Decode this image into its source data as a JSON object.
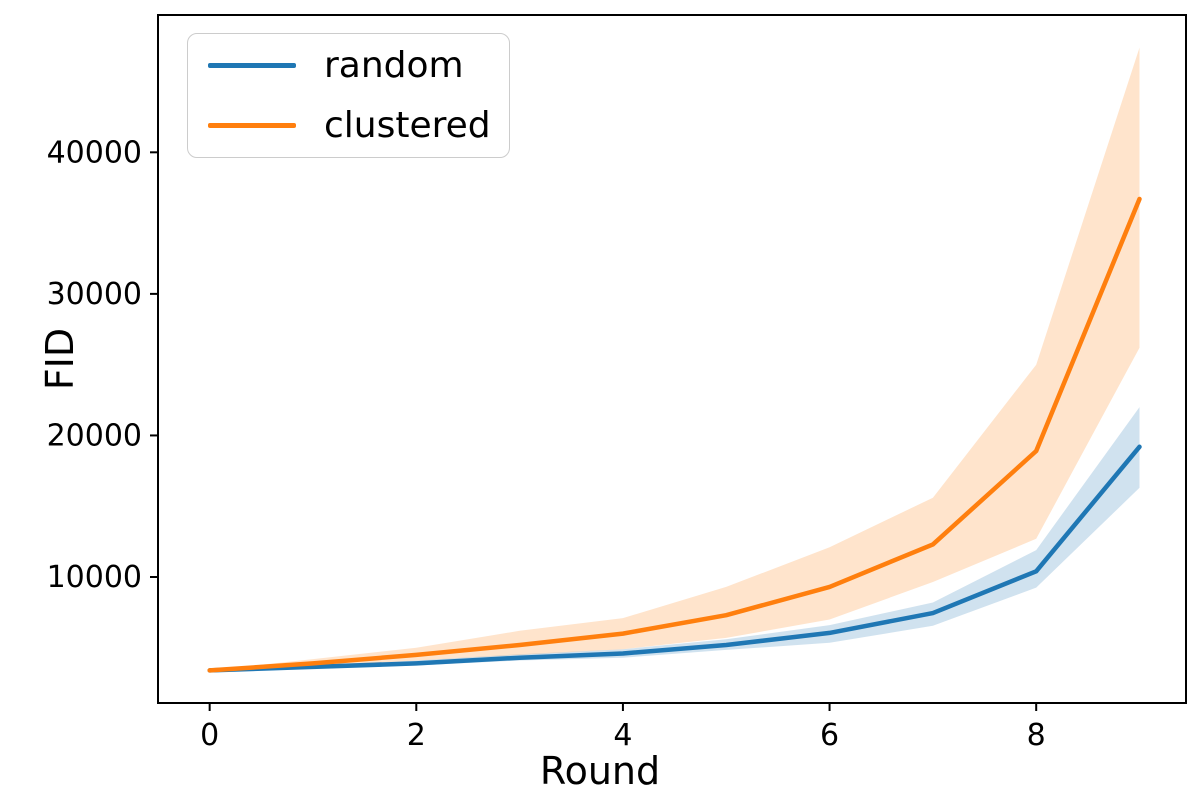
{
  "figure": {
    "background": "#ffffff",
    "accent_blue": "#1f77b4",
    "accent_orange": "#ff7f0e"
  },
  "legend": {
    "position": "upper left",
    "items": [
      {
        "label": "random",
        "color": "#1f77b4"
      },
      {
        "label": "clustered",
        "color": "#ff7f0e"
      }
    ]
  },
  "chart_data": {
    "type": "line",
    "title": "",
    "xlabel": "Round",
    "ylabel": "FID",
    "x": [
      0,
      1,
      2,
      3,
      4,
      5,
      6,
      7,
      8,
      9
    ],
    "x_ticks": [
      0,
      2,
      4,
      6,
      8
    ],
    "y_ticks": [
      10000,
      20000,
      30000,
      40000
    ],
    "xlim": [
      -0.5,
      9.45
    ],
    "ylim": [
      1100,
      49700
    ],
    "grid": false,
    "legend_position": "upper left",
    "band_opacity": 0.21,
    "series": [
      {
        "name": "random",
        "color": "#1f77b4",
        "values": [
          3400,
          3650,
          3900,
          4300,
          4600,
          5200,
          6050,
          7450,
          10400,
          19200
        ],
        "band_lower": [
          3400,
          3550,
          3750,
          4100,
          4300,
          4850,
          5350,
          6550,
          9250,
          16300
        ],
        "band_upper": [
          3400,
          3750,
          4100,
          4550,
          4900,
          5600,
          6600,
          8200,
          11900,
          22000
        ]
      },
      {
        "name": "clustered",
        "color": "#ff7f0e",
        "values": [
          3400,
          3900,
          4500,
          5200,
          6000,
          7300,
          9300,
          12300,
          18900,
          36700
        ],
        "band_lower": [
          3400,
          3700,
          4100,
          4500,
          4900,
          5700,
          7000,
          9650,
          12700,
          26200
        ],
        "band_upper": [
          3400,
          4200,
          5000,
          6200,
          7100,
          9300,
          12100,
          15600,
          25000,
          47400
        ]
      }
    ]
  }
}
